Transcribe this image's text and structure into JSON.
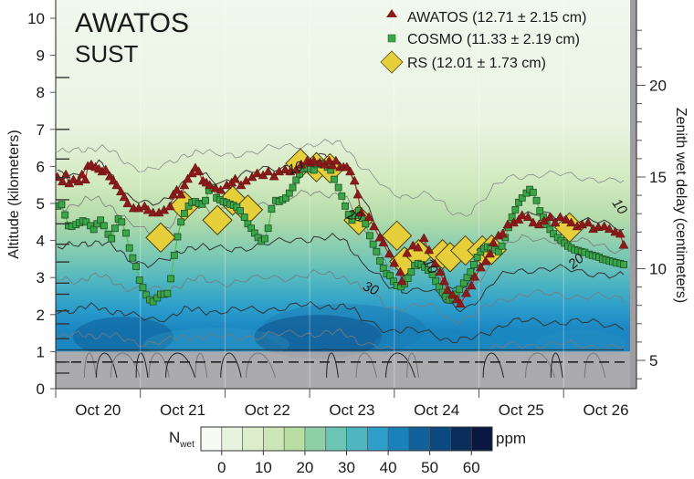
{
  "chart_data": {
    "type": "heatmap",
    "title": "AWATOS",
    "subtitle": "SUST",
    "xlabel": "",
    "ylabel": "Altitude (kilometers)",
    "y2label": "Zenith wet delay (centimeters)",
    "xlim_days": [
      0,
      6.9
    ],
    "ylim": [
      0,
      10.5
    ],
    "y2lim": [
      3,
      23
    ],
    "x_ticks": [
      "Oct 20",
      "Oct 21",
      "Oct 22",
      "Oct 23",
      "Oct 24",
      "Oct 25",
      "Oct 26"
    ],
    "y_ticks": [
      "0",
      "1",
      "2",
      "3",
      "4",
      "5",
      "6",
      "7",
      "8",
      "9",
      "10"
    ],
    "y2_ticks": [
      "5",
      "10",
      "15",
      "20"
    ],
    "ground_level_km": 1.0,
    "dashed_line_km": 0.72,
    "grid": false,
    "legend_position": "top-right",
    "legend": [
      {
        "name": "AWATOS",
        "label": "AWATOS (12.71 ± 2.15 cm)",
        "marker": "triangle",
        "color": "#8b1a1a"
      },
      {
        "name": "COSMO",
        "label": "COSMO (11.33 ± 2.19 cm)",
        "marker": "square",
        "color": "#3aa64a"
      },
      {
        "name": "RS",
        "label": "RS (12.01 ± 1.73 cm)",
        "marker": "diamond",
        "color": "#e6cf3a"
      }
    ],
    "colorbar": {
      "label": "N",
      "label_sub": "wet",
      "unit": "ppm",
      "ticks": [
        "0",
        "10",
        "20",
        "30",
        "40",
        "50",
        "60"
      ],
      "range": [
        -5,
        65
      ],
      "step": 5,
      "colors": [
        "#f7fbf4",
        "#e8f3df",
        "#dcedcc",
        "#cde6b8",
        "#b9dea4",
        "#8fd0a6",
        "#6cc4b4",
        "#4fb6c0",
        "#2e9ec9",
        "#1a82b8",
        "#11629a",
        "#0b4a80",
        "#0a2d5c",
        "#081840"
      ]
    },
    "contour_labels": [
      "10",
      "10",
      "10",
      "20",
      "20",
      "30"
    ],
    "series": [
      {
        "name": "AWATOS",
        "unit": "km",
        "x_days": [
          0.02,
          0.08,
          0.12,
          0.16,
          0.21,
          0.27,
          0.31,
          0.35,
          0.38,
          0.42,
          0.47,
          0.51,
          0.55,
          0.59,
          0.64,
          0.68,
          0.72,
          0.77,
          0.81,
          0.85,
          0.92,
          0.98,
          1.05,
          1.09,
          1.15,
          1.22,
          1.28,
          1.35,
          1.39,
          1.43,
          1.48,
          1.52,
          1.56,
          1.61,
          1.65,
          1.69,
          1.74,
          1.78,
          1.82,
          1.89,
          1.95,
          2.02,
          2.08,
          2.12,
          2.19,
          2.25,
          2.32,
          2.38,
          2.45,
          2.51,
          2.58,
          2.64,
          2.71,
          2.77,
          2.84,
          2.9,
          2.97,
          3.01,
          3.05,
          3.12,
          3.18,
          3.23,
          3.27,
          3.31,
          3.36,
          3.4,
          3.44,
          3.48,
          3.53,
          3.57,
          3.61,
          3.7,
          3.76,
          3.83,
          3.87,
          3.94,
          4.0,
          4.07,
          4.09,
          4.15,
          4.22,
          4.28,
          4.35,
          4.41,
          4.48,
          4.54,
          4.59,
          4.63,
          4.69,
          4.74,
          4.78,
          4.85,
          4.91,
          4.95,
          5.02,
          5.08,
          5.13,
          5.17,
          5.23,
          5.28,
          5.34,
          5.41,
          5.47,
          5.51,
          5.58,
          5.64,
          5.71,
          5.77,
          5.84,
          5.9,
          5.96,
          6.03,
          6.09,
          6.16,
          6.22,
          6.29,
          6.35,
          6.41,
          6.48,
          6.54,
          6.61,
          6.67,
          6.71
        ],
        "values": [
          5.69,
          5.57,
          5.76,
          5.52,
          5.62,
          5.57,
          5.76,
          5.62,
          5.99,
          6.03,
          5.96,
          5.91,
          5.84,
          5.89,
          5.71,
          5.59,
          5.47,
          5.3,
          5.15,
          4.98,
          4.85,
          4.85,
          4.9,
          4.8,
          4.73,
          4.73,
          4.8,
          4.9,
          5.22,
          5.34,
          5.22,
          5.47,
          5.64,
          5.79,
          5.94,
          5.84,
          5.59,
          5.54,
          5.47,
          5.39,
          5.34,
          5.47,
          5.54,
          5.64,
          5.47,
          5.59,
          5.69,
          5.79,
          5.74,
          5.84,
          5.71,
          5.84,
          5.89,
          5.84,
          5.89,
          6.03,
          6.13,
          6.08,
          6.13,
          6.08,
          6.03,
          6.13,
          6.01,
          6.13,
          5.96,
          5.96,
          5.96,
          5.84,
          5.59,
          5.22,
          4.73,
          4.61,
          4.36,
          4.06,
          3.92,
          3.62,
          3.37,
          3.13,
          2.88,
          3.64,
          3.84,
          3.79,
          4.04,
          3.72,
          3.35,
          3.13,
          2.88,
          2.64,
          2.51,
          2.39,
          2.27,
          2.56,
          2.76,
          3.0,
          3.25,
          3.42,
          3.62,
          3.92,
          4.11,
          4.16,
          4.41,
          4.46,
          4.54,
          4.66,
          4.61,
          4.46,
          4.41,
          4.51,
          4.61,
          4.46,
          4.61,
          4.54,
          4.46,
          4.36,
          4.41,
          4.46,
          4.29,
          4.34,
          4.36,
          4.29,
          4.21,
          4.16,
          3.86
        ]
      },
      {
        "name": "COSMO",
        "unit": "km",
        "x_days": [
          0.02,
          0.07,
          0.11,
          0.15,
          0.19,
          0.24,
          0.28,
          0.32,
          0.36,
          0.41,
          0.45,
          0.49,
          0.53,
          0.57,
          0.62,
          0.66,
          0.7,
          0.74,
          0.78,
          0.83,
          0.87,
          0.91,
          0.95,
          0.99,
          1.03,
          1.07,
          1.11,
          1.15,
          1.2,
          1.24,
          1.28,
          1.32,
          1.36,
          1.4,
          1.44,
          1.48,
          1.52,
          1.57,
          1.61,
          1.65,
          1.69,
          1.73,
          1.77,
          1.81,
          1.86,
          1.9,
          1.94,
          1.98,
          2.02,
          2.06,
          2.1,
          2.14,
          2.18,
          2.23,
          2.27,
          2.31,
          2.35,
          2.39,
          2.43,
          2.47,
          2.51,
          2.55,
          2.6,
          2.64,
          2.68,
          2.72,
          2.76,
          2.8,
          2.84,
          2.88,
          2.92,
          2.97,
          3.01,
          3.05,
          3.09,
          3.13,
          3.17,
          3.21,
          3.25,
          3.29,
          3.34,
          3.38,
          3.42,
          3.46,
          3.5,
          3.54,
          3.58,
          3.62,
          3.66,
          3.71,
          3.75,
          3.79,
          3.83,
          3.87,
          3.91,
          3.95,
          3.99,
          4.03,
          4.08,
          4.12,
          4.16,
          4.2,
          4.24,
          4.28,
          4.32,
          4.36,
          4.4,
          4.45,
          4.49,
          4.53,
          4.57,
          4.61,
          4.65,
          4.69,
          4.73,
          4.77,
          4.82,
          4.86,
          4.9,
          4.94,
          4.98,
          5.02,
          5.06,
          5.1,
          5.14,
          5.19,
          5.23,
          5.27,
          5.31,
          5.35,
          5.39,
          5.43,
          5.47,
          5.51,
          5.56,
          5.6,
          5.64,
          5.68,
          5.72,
          5.76,
          5.8,
          5.84,
          5.88,
          5.93,
          5.97,
          6.01,
          6.05,
          6.09,
          6.13,
          6.17,
          6.21,
          6.25,
          6.3,
          6.34,
          6.38,
          6.42,
          6.46,
          6.5,
          6.54,
          6.58,
          6.62,
          6.67,
          6.71
        ],
        "values": [
          4.93,
          4.97,
          4.69,
          4.4,
          4.38,
          4.43,
          4.48,
          4.53,
          4.5,
          4.4,
          4.3,
          4.45,
          4.55,
          4.4,
          4.17,
          4.05,
          4.33,
          4.58,
          4.5,
          4.2,
          3.8,
          3.53,
          3.3,
          2.93,
          2.73,
          2.53,
          2.4,
          2.35,
          2.45,
          2.55,
          2.55,
          2.57,
          2.97,
          3.6,
          4.1,
          4.5,
          4.73,
          4.93,
          5.03,
          5.05,
          5.0,
          4.98,
          5.08,
          5.35,
          5.43,
          5.15,
          5.1,
          5.05,
          5.02,
          4.98,
          4.95,
          4.9,
          4.8,
          4.63,
          4.45,
          4.33,
          4.2,
          4.08,
          3.98,
          4.05,
          4.33,
          4.85,
          5.08,
          5.05,
          5.1,
          5.15,
          5.28,
          5.43,
          5.63,
          5.8,
          5.93,
          5.95,
          5.93,
          5.9,
          6.05,
          6.08,
          6.05,
          5.98,
          5.9,
          5.65,
          5.43,
          5.2,
          4.93,
          4.7,
          4.55,
          4.68,
          4.8,
          4.6,
          4.45,
          4.13,
          3.9,
          3.7,
          3.45,
          3.25,
          3.1,
          3.05,
          2.9,
          2.78,
          2.75,
          2.83,
          2.98,
          3.15,
          3.33,
          3.38,
          3.35,
          3.28,
          3.2,
          3.08,
          2.9,
          2.75,
          2.6,
          2.48,
          2.4,
          2.45,
          2.55,
          2.68,
          2.85,
          3.0,
          3.15,
          3.35,
          3.55,
          3.7,
          3.78,
          3.83,
          3.8,
          3.75,
          3.7,
          3.85,
          4.08,
          4.35,
          4.63,
          4.83,
          5.03,
          5.15,
          5.28,
          5.38,
          5.3,
          5.08,
          4.8,
          4.63,
          4.43,
          4.3,
          4.18,
          4.08,
          4.0,
          3.93,
          3.85,
          3.8,
          3.75,
          3.73,
          3.7,
          3.68,
          3.63,
          3.6,
          3.58,
          3.55,
          3.5,
          3.48,
          3.45,
          3.43,
          3.4,
          3.38,
          3.35
        ]
      },
      {
        "name": "RS",
        "unit": "km",
        "x_days": [
          1.24,
          1.52,
          1.91,
          2.09,
          2.27,
          2.89,
          3.08,
          3.24,
          3.58,
          4.03,
          4.12,
          4.29,
          4.57,
          4.66,
          4.84,
          5.04,
          5.15,
          6.07
        ],
        "values": [
          4.08,
          4.93,
          4.55,
          5.08,
          4.83,
          6.08,
          5.98,
          5.95,
          4.55,
          4.13,
          3.43,
          3.63,
          3.63,
          3.55,
          3.73,
          3.73,
          3.75,
          4.35
        ]
      }
    ]
  }
}
